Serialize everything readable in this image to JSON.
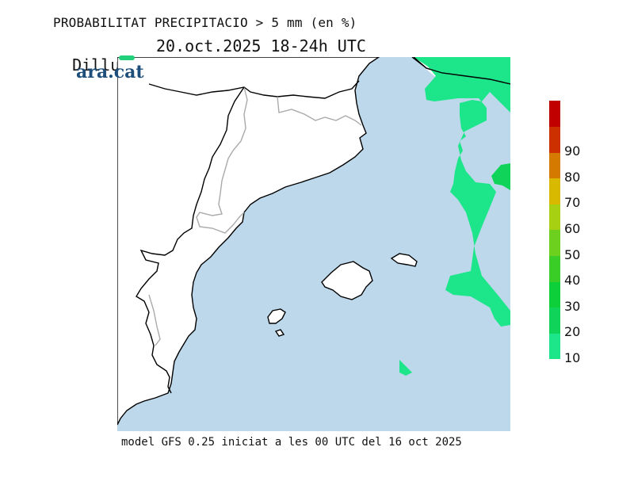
{
  "title": {
    "line1": "PROBABILITAT PRECIPITACIO > 5 mm (en %)",
    "day": "Dilluns",
    "date_range": "20.oct.2025 18-24h UTC"
  },
  "logo": {
    "text": "ara.cat"
  },
  "footer": "model GFS 0.25 iniciat a les 00 UTC del 16 oct 2025",
  "legend": {
    "bands": [
      {
        "from": 10,
        "to": 20,
        "color": "#1de58a",
        "label": "10"
      },
      {
        "from": 20,
        "to": 30,
        "color": "#10d45a",
        "label": "20"
      },
      {
        "from": 30,
        "to": 40,
        "color": "#0ccf3a",
        "label": "30"
      },
      {
        "from": 40,
        "to": 50,
        "color": "#3acd27",
        "label": "40"
      },
      {
        "from": 50,
        "to": 60,
        "color": "#6ed01e",
        "label": "50"
      },
      {
        "from": 60,
        "to": 70,
        "color": "#a8d012",
        "label": "60"
      },
      {
        "from": 70,
        "to": 80,
        "color": "#d9b800",
        "label": "70"
      },
      {
        "from": 80,
        "to": 90,
        "color": "#d47a00",
        "label": "80"
      },
      {
        "from": 90,
        "to": 100,
        "color": "#cc3000",
        "label": "90"
      },
      {
        "from": 100,
        "to": 110,
        "color": "#c00000",
        "label": ""
      }
    ]
  },
  "map": {
    "sea_color": "#bcd8ea",
    "land_color": "#ffffff",
    "coast_color": "#000000",
    "border_color": "#aaaaaa",
    "precip_color": "#1de58a",
    "precip_dark_color": "#10d45a"
  }
}
